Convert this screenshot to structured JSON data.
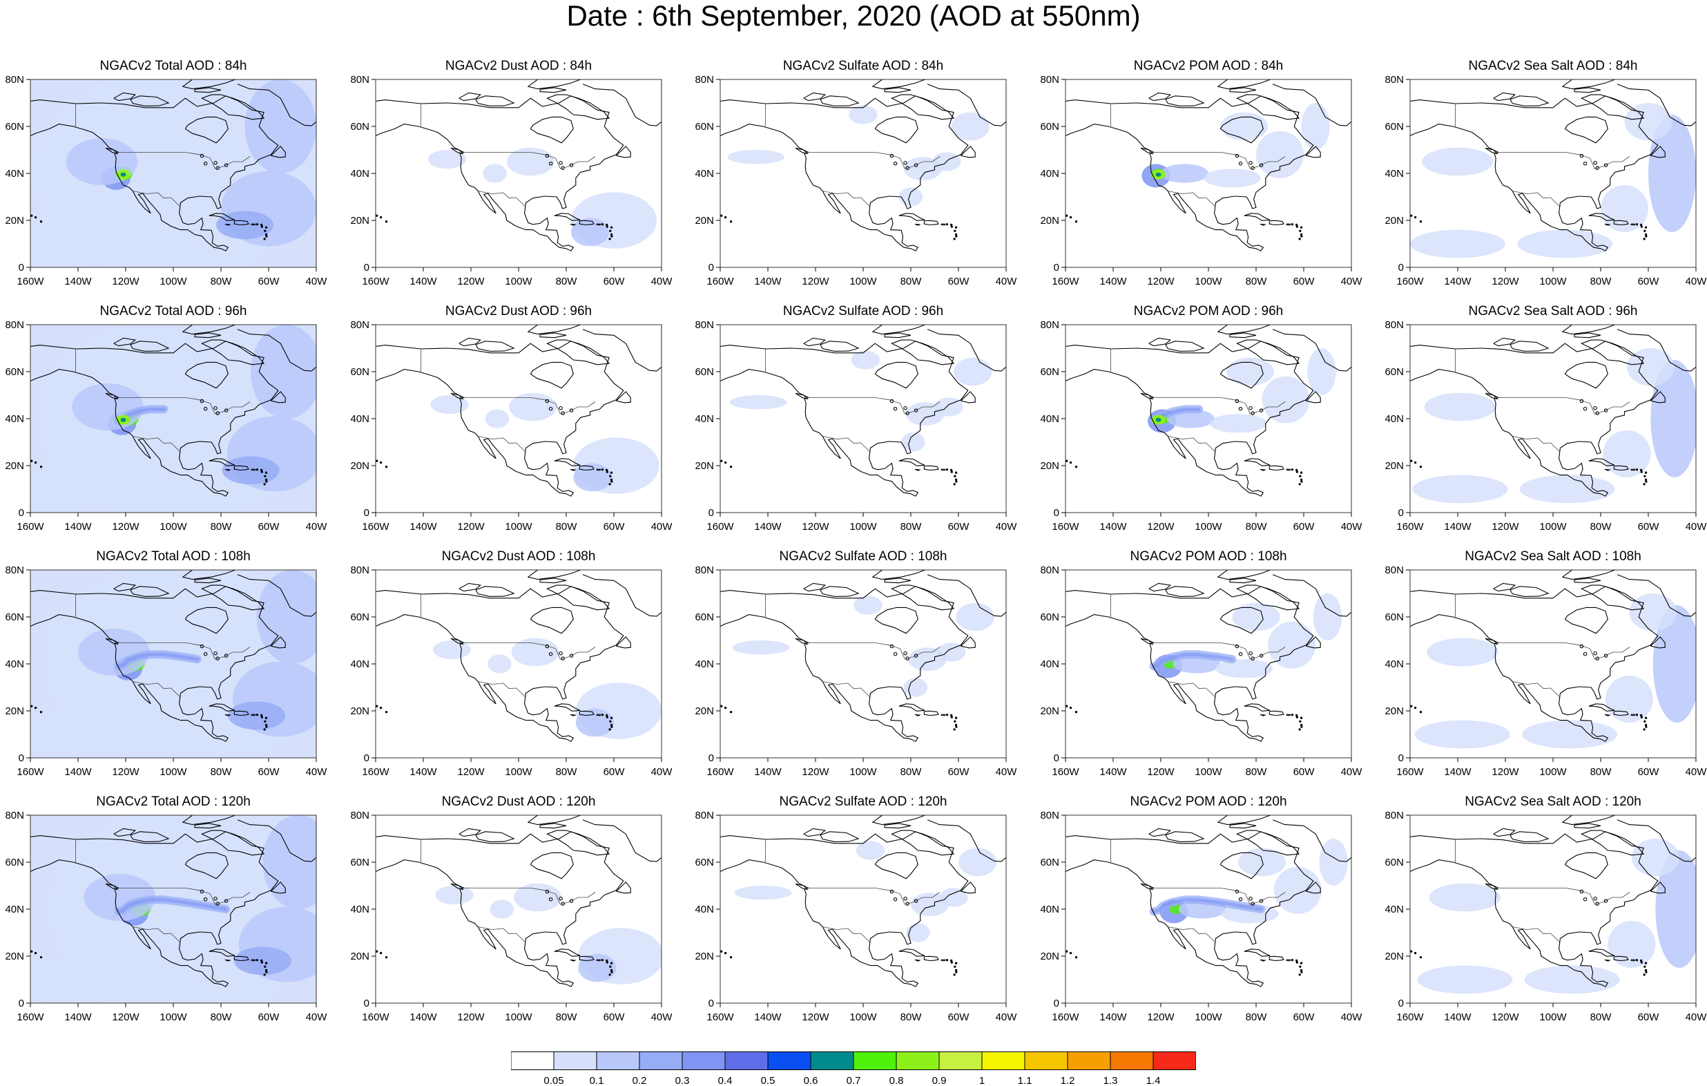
{
  "title": "Date : 6th September, 2020 (AOD at 550nm)",
  "colors": {
    "scale": [
      "#ffffff",
      "#d6e0fb",
      "#b8c8fa",
      "#96acf5",
      "#7f94f3",
      "#5f6ee8",
      "#0a4ff2",
      "#008c8c",
      "#4ff00c",
      "#8ef01a",
      "#c7f040",
      "#f5f500",
      "#f5c600",
      "#f5a000",
      "#f57800",
      "#f52a1a"
    ],
    "land_outline": "#000000",
    "border": "#333333"
  },
  "colorbar": {
    "labels": [
      "0.05",
      "0.1",
      "0.2",
      "0.3",
      "0.4",
      "0.5",
      "0.6",
      "0.7",
      "0.8",
      "0.9",
      "1",
      "1.1",
      "1.2",
      "1.3",
      "1.4"
    ]
  },
  "axes": {
    "lat_labels": [
      "80N",
      "60N",
      "40N",
      "20N",
      "0"
    ],
    "lon_labels": [
      "160W",
      "140W",
      "120W",
      "100W",
      "80W",
      "60W",
      "40W"
    ]
  },
  "panels": [
    {
      "title": "NGACv2 Total AOD : 84h",
      "species": "total",
      "hour": 84
    },
    {
      "title": "NGACv2 Dust AOD : 84h",
      "species": "dust",
      "hour": 84
    },
    {
      "title": "NGACv2 Sulfate AOD : 84h",
      "species": "sulfate",
      "hour": 84
    },
    {
      "title": "NGACv2 POM AOD : 84h",
      "species": "pom",
      "hour": 84
    },
    {
      "title": "NGACv2 Sea Salt AOD : 84h",
      "species": "seasalt",
      "hour": 84
    },
    {
      "title": "NGACv2 Total AOD : 96h",
      "species": "total",
      "hour": 96
    },
    {
      "title": "NGACv2 Dust AOD : 96h",
      "species": "dust",
      "hour": 96
    },
    {
      "title": "NGACv2 Sulfate AOD : 96h",
      "species": "sulfate",
      "hour": 96
    },
    {
      "title": "NGACv2 POM AOD : 96h",
      "species": "pom",
      "hour": 96
    },
    {
      "title": "NGACv2 Sea Salt AOD : 96h",
      "species": "seasalt",
      "hour": 96
    },
    {
      "title": "NGACv2 Total AOD : 108h",
      "species": "total",
      "hour": 108
    },
    {
      "title": "NGACv2 Dust AOD : 108h",
      "species": "dust",
      "hour": 108
    },
    {
      "title": "NGACv2 Sulfate AOD : 108h",
      "species": "sulfate",
      "hour": 108
    },
    {
      "title": "NGACv2 POM AOD : 108h",
      "species": "pom",
      "hour": 108
    },
    {
      "title": "NGACv2 Sea Salt AOD : 108h",
      "species": "seasalt",
      "hour": 108
    },
    {
      "title": "NGACv2 Total AOD : 120h",
      "species": "total",
      "hour": 120
    },
    {
      "title": "NGACv2 Dust AOD : 120h",
      "species": "dust",
      "hour": 120
    },
    {
      "title": "NGACv2 Sulfate AOD : 120h",
      "species": "sulfate",
      "hour": 120
    },
    {
      "title": "NGACv2 POM AOD : 120h",
      "species": "pom",
      "hour": 120
    },
    {
      "title": "NGACv2 Sea Salt  AOD : 120h",
      "species": "seasalt",
      "hour": 120
    }
  ]
}
